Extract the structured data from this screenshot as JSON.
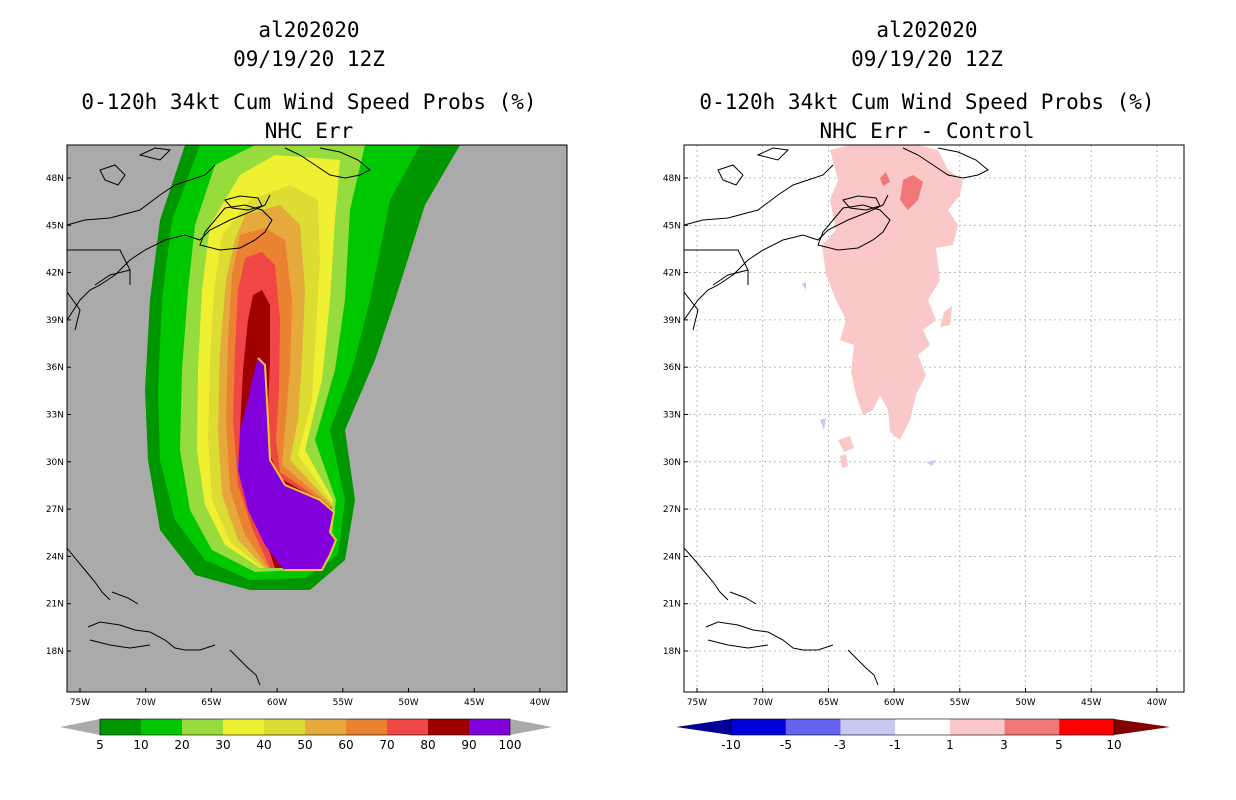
{
  "left": {
    "storm": "al202020",
    "datetime": "09/19/20 12Z",
    "product": "0-120h 34kt Cum Wind Speed Probs (%)",
    "subtitle": "NHC Err"
  },
  "right": {
    "storm": "al202020",
    "datetime": "09/19/20 12Z",
    "product": "0-120h 34kt Cum Wind Speed Probs (%)",
    "subtitle": "NHC Err - Control"
  },
  "axes": {
    "lat_labels": [
      "48N",
      "45N",
      "42N",
      "39N",
      "36N",
      "33N",
      "30N",
      "27N",
      "24N",
      "21N",
      "18N"
    ],
    "lon_labels": [
      "75W",
      "70W",
      "65W",
      "60W",
      "55W",
      "50W",
      "45W",
      "40W"
    ]
  },
  "colorbar_left": {
    "labels": [
      "5",
      "10",
      "20",
      "30",
      "40",
      "50",
      "60",
      "70",
      "80",
      "90",
      "100"
    ],
    "colors": [
      "#009600",
      "#00c800",
      "#96dc3c",
      "#f0f032",
      "#dcdc32",
      "#e6aa3c",
      "#eb8232",
      "#f04646",
      "#a00000",
      "#8200dc"
    ],
    "under_color": "#aaaaaa",
    "over_color": "#aaaaaa"
  },
  "colorbar_right": {
    "labels": [
      "-10",
      "-5",
      "-3",
      "-1",
      "1",
      "3",
      "5",
      "10"
    ],
    "colors": [
      "#0000dc",
      "#6464f0",
      "#c8c8f5",
      "#ffffff",
      "#fac8c8",
      "#f07878",
      "#ff0000"
    ],
    "under_color": "#000096",
    "over_color": "#820000"
  },
  "map_colors": {
    "background_left": "#aaaaaa",
    "land_coast": "#000000",
    "grid": "#aaaaaa"
  },
  "chart_data": {
    "type": "heatmap",
    "variable": "0-120h 34kt cumulative wind speed probability (%)",
    "lat_range": [
      15,
      50
    ],
    "lon_range": [
      -76,
      -41
    ],
    "contour_levels_left": [
      5,
      10,
      20,
      30,
      40,
      50,
      60,
      70,
      80,
      90,
      100
    ],
    "contour_levels_right": [
      -10,
      -5,
      -3,
      -1,
      1,
      3,
      5,
      10
    ]
  }
}
